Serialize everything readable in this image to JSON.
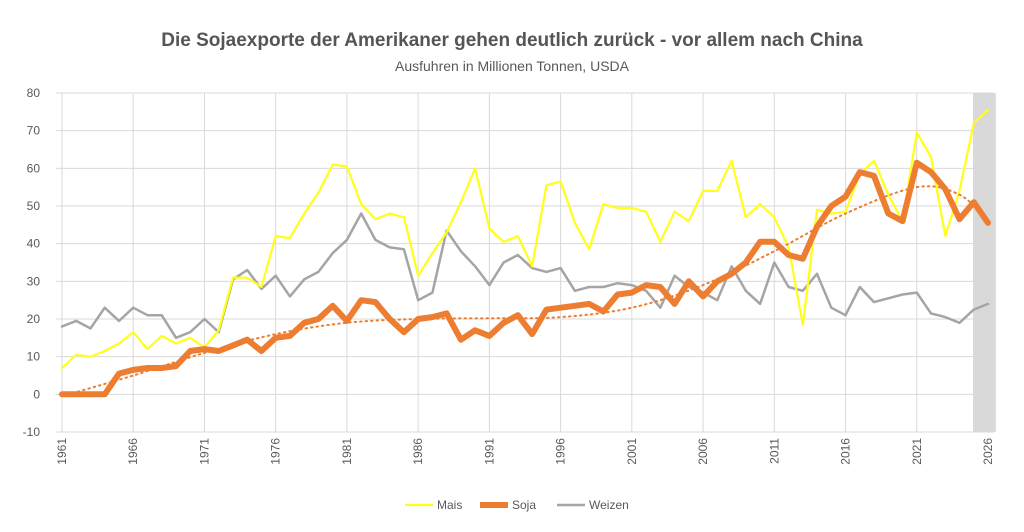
{
  "chart_data": {
    "type": "line",
    "title": "Die Sojaexporte der Amerikaner gehen deutlich zurück - vor allem nach China",
    "subtitle": "Ausfuhren in Millionen Tonnen, USDA",
    "xlabel": "",
    "ylabel": "",
    "x_start": 1961,
    "x_end": 2026,
    "x_ticks": [
      "1961",
      "1966",
      "1971",
      "1976",
      "1981",
      "1986",
      "1991",
      "1996",
      "2001",
      "2006",
      "2011",
      "2016",
      "2021",
      "2026"
    ],
    "ylim": [
      -10,
      80
    ],
    "y_ticks": [
      -10,
      0,
      10,
      20,
      30,
      40,
      50,
      60,
      70,
      80
    ],
    "grid": true,
    "legend_position": "bottom",
    "highlight_range": [
      2025,
      2026
    ],
    "colors": {
      "Mais": "#ffff1a",
      "Soja": "#ed7d31",
      "Weizen": "#a5a5a5",
      "highlight": "#d9d9d9"
    },
    "series": [
      {
        "name": "Mais",
        "values": [
          7,
          10.5,
          10,
          11.5,
          13.5,
          16.5,
          12,
          15.5,
          13.5,
          15,
          12.5,
          17,
          31,
          31,
          28.5,
          42,
          41.5,
          48,
          53.5,
          61,
          60.5,
          50.5,
          46.5,
          48,
          47,
          31.5,
          37.5,
          43,
          51,
          60,
          44,
          40.5,
          42,
          34,
          55.5,
          56.5,
          45.5,
          38.5,
          50.5,
          49.5,
          49.5,
          48.5,
          40.5,
          48.5,
          46,
          54,
          54,
          62,
          47,
          50.5,
          47,
          39,
          18.5,
          49,
          48,
          48.5,
          58.5,
          62,
          53,
          46,
          69.5,
          63,
          42,
          54,
          72,
          75.5
        ]
      },
      {
        "name": "Soja",
        "values": [
          0,
          0,
          0,
          0,
          5.5,
          6.5,
          7,
          7,
          7.5,
          11.5,
          12,
          11.5,
          13,
          14.5,
          11.5,
          15,
          15.5,
          19,
          20,
          23.5,
          19.5,
          25,
          24.5,
          20,
          16.5,
          20,
          20.5,
          21.5,
          14.5,
          17,
          15.5,
          19,
          21,
          16,
          22.5,
          23,
          23.5,
          24,
          22,
          26.5,
          27,
          29,
          28.5,
          24,
          30,
          26,
          30,
          32,
          35,
          40.5,
          40.5,
          37,
          36,
          44.5,
          50,
          52.5,
          59,
          58,
          48,
          46,
          61.5,
          59,
          54.5,
          46.5,
          51,
          45.5
        ]
      },
      {
        "name": "Weizen",
        "values": [
          18,
          19.5,
          17.5,
          23,
          19.5,
          23,
          21,
          21,
          15,
          16.5,
          20,
          16.5,
          30.5,
          33,
          28,
          31.5,
          26,
          30.5,
          32.5,
          37.5,
          41,
          48,
          41,
          39,
          38.5,
          25,
          27,
          43.5,
          38,
          34,
          29,
          35,
          37,
          33.5,
          32.5,
          33.5,
          27.5,
          28.5,
          28.5,
          29.5,
          29,
          27.5,
          23,
          31.5,
          28.5,
          27,
          25,
          34,
          27.5,
          24,
          35,
          28.5,
          27.5,
          32,
          23,
          21,
          28.5,
          24.5,
          25.5,
          26.5,
          27,
          21.5,
          20.5,
          19,
          22.5,
          24
        ]
      }
    ],
    "trendline": {
      "series": "Soja",
      "style": "dotted",
      "points": [
        [
          1961,
          -0.5
        ],
        [
          1966,
          5
        ],
        [
          1971,
          11
        ],
        [
          1976,
          16
        ],
        [
          1981,
          19
        ],
        [
          1986,
          20
        ],
        [
          1991,
          20.2
        ],
        [
          1996,
          20.5
        ],
        [
          2001,
          23
        ],
        [
          2006,
          29
        ],
        [
          2011,
          38
        ],
        [
          2016,
          48
        ],
        [
          2021,
          55
        ],
        [
          2024,
          53
        ],
        [
          2026,
          46
        ]
      ]
    }
  }
}
